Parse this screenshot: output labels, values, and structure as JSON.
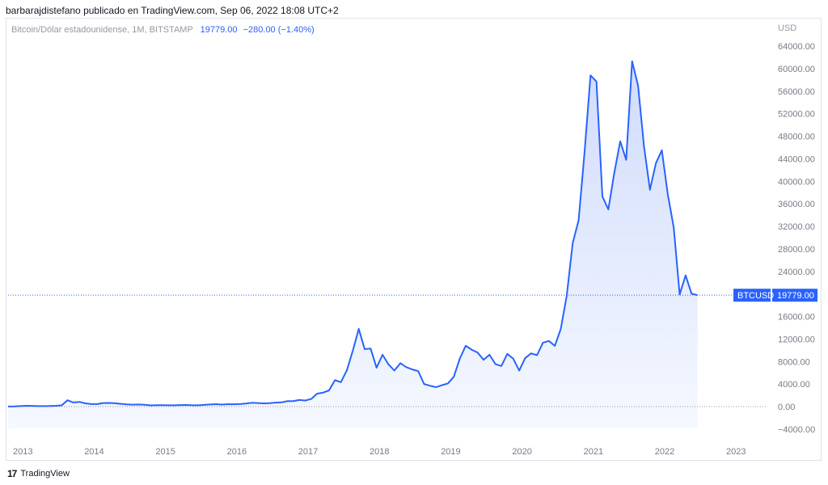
{
  "header": {
    "published_note": "barbarajdistefano publicado en TradingView.com, Sep 06, 2022 18:08 UTC+2"
  },
  "legend": {
    "symbol_desc": "Bitcoin/Dólar estadounidense, 1M, BITSTAMP",
    "last_value": "19779.00",
    "change": "−280.00 (−1.40%)"
  },
  "price_tag": {
    "symbol": "BTCUSD",
    "value": "19779.00"
  },
  "footer": {
    "logo_mark": "17",
    "brand": "TradingView"
  },
  "colors": {
    "line": "#2962ff",
    "area_top": "#d1dcfb",
    "area_bottom": "#f5f8ff",
    "tag_bg": "#2962ff",
    "grid": "#f0f3fa"
  },
  "chart_data": {
    "type": "area",
    "series": [
      {
        "name": "BTCUSD",
        "start": "2013-01",
        "interval": "1M",
        "values": [
          20,
          33,
          93,
          139,
          129,
          97,
          98,
          106,
          141,
          206,
          1129,
          732,
          832,
          573,
          457,
          447,
          629,
          639,
          587,
          478,
          387,
          338,
          378,
          320,
          217,
          254,
          244,
          236,
          230,
          264,
          284,
          230,
          237,
          313,
          377,
          430,
          368,
          437,
          416,
          448,
          531,
          673,
          624,
          573,
          609,
          700,
          745,
          964,
          970,
          1190,
          1080,
          1350,
          2300,
          2480,
          2870,
          4700,
          4340,
          6450,
          9900,
          13800,
          10200,
          10300,
          6900,
          9200,
          7500,
          6400,
          7700,
          7000,
          6600,
          6300,
          4000,
          3700,
          3450,
          3800,
          4100,
          5300,
          8500,
          10800,
          10100,
          9600,
          8300,
          9200,
          7550,
          7200,
          9350,
          8500,
          6400,
          8600,
          9450,
          9130,
          11340,
          11650,
          10780,
          13800,
          19700,
          29000,
          33100,
          45200,
          58800,
          57700,
          37300,
          35000,
          41500,
          47100,
          43800,
          61300,
          57000,
          46200,
          38500,
          43200,
          45500,
          37700,
          31800,
          19900,
          23300,
          20050,
          19779
        ]
      }
    ],
    "x_ticks": [
      "2013",
      "2014",
      "2015",
      "2016",
      "2017",
      "2018",
      "2019",
      "2020",
      "2021",
      "2022",
      "2023"
    ],
    "y_ticks": [
      "64000.00",
      "60000.00",
      "56000.00",
      "52000.00",
      "48000.00",
      "44000.00",
      "40000.00",
      "36000.00",
      "32000.00",
      "28000.00",
      "24000.00",
      "16000.00",
      "12000.00",
      "8000.00",
      "4000.00",
      "0.00",
      "−4000.00"
    ],
    "y_axis_unit": "USD",
    "ylim": [
      -4000,
      64000
    ],
    "grid": false
  }
}
